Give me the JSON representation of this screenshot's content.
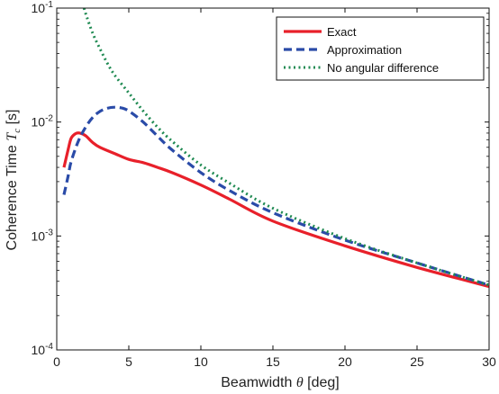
{
  "chart_data": {
    "type": "line",
    "title": "",
    "xlabel": "Beamwidth θ [deg]",
    "ylabel": "Coherence Time T_c [s]",
    "xlabel_parts": {
      "pre": "Beamwidth ",
      "var": "θ",
      "post": " [deg]"
    },
    "ylabel_parts": {
      "pre": "Coherence Time ",
      "var": "T",
      "sub": "c",
      "post": " [s]"
    },
    "xlim": [
      0,
      30
    ],
    "ylim": [
      0.0001,
      0.1
    ],
    "yscale": "log",
    "grid": false,
    "legend_position": "top-right",
    "x_ticks": [
      {
        "value": 0,
        "label": "0"
      },
      {
        "value": 5,
        "label": "5"
      },
      {
        "value": 10,
        "label": "10"
      },
      {
        "value": 15,
        "label": "15"
      },
      {
        "value": 20,
        "label": "20"
      },
      {
        "value": 25,
        "label": "25"
      },
      {
        "value": 30,
        "label": "30"
      }
    ],
    "y_ticks": [
      {
        "value": 0.0001,
        "base": "10",
        "exp": "-4"
      },
      {
        "value": 0.001,
        "base": "10",
        "exp": "-3"
      },
      {
        "value": 0.01,
        "base": "10",
        "exp": "-2"
      },
      {
        "value": 0.1,
        "base": "10",
        "exp": "-1"
      }
    ],
    "series": [
      {
        "name": "Exact",
        "color": "#e8202a",
        "style": "solid",
        "x": [
          0.5,
          0.8,
          1.0,
          1.3,
          1.6,
          2.0,
          2.5,
          3,
          4,
          5,
          6,
          7,
          8,
          10,
          12,
          15,
          20,
          25,
          30
        ],
        "y": [
          0.004,
          0.0058,
          0.0072,
          0.0079,
          0.008,
          0.0076,
          0.0066,
          0.006,
          0.0053,
          0.0047,
          0.0044,
          0.004,
          0.0036,
          0.0028,
          0.0021,
          0.00135,
          0.00082,
          0.00053,
          0.00036
        ]
      },
      {
        "name": "Approximation",
        "color": "#2a4ba8",
        "style": "dashed",
        "x": [
          0.5,
          0.8,
          1.0,
          1.5,
          2.0,
          2.5,
          3,
          3.5,
          4,
          4.5,
          5,
          6,
          7,
          8,
          10,
          12,
          15,
          20,
          25,
          30
        ],
        "y": [
          0.0023,
          0.0034,
          0.0045,
          0.0068,
          0.009,
          0.011,
          0.0124,
          0.0132,
          0.0135,
          0.0133,
          0.0125,
          0.01,
          0.0075,
          0.0057,
          0.0036,
          0.0025,
          0.0016,
          0.00092,
          0.00058,
          0.00037
        ]
      },
      {
        "name": "No angular difference",
        "color": "#1f8a52",
        "style": "dotted",
        "x": [
          1.9,
          2.0,
          2.5,
          3,
          3.5,
          4,
          5,
          6,
          7,
          8,
          10,
          12,
          15,
          20,
          25,
          30
        ],
        "y": [
          0.1,
          0.09,
          0.06,
          0.044,
          0.033,
          0.026,
          0.018,
          0.0125,
          0.009,
          0.0068,
          0.0042,
          0.0029,
          0.00175,
          0.00095,
          0.00058,
          0.00037
        ]
      }
    ]
  }
}
